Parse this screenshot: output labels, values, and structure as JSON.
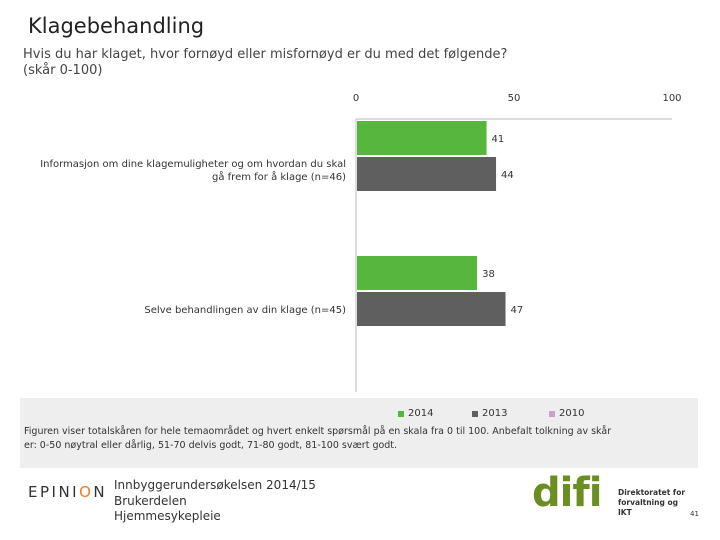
{
  "header": {
    "title": "Klagebehandling",
    "subtitle_line1": "Hvis du har klaget, hvor fornøyd eller misfornøyd er du med det følgende?",
    "subtitle_line2": "(skår 0-100)"
  },
  "chart_data": {
    "type": "bar",
    "orientation": "horizontal",
    "xlim": [
      0,
      100
    ],
    "ticks": [
      "0",
      "50",
      "100"
    ],
    "categories": [
      {
        "line1": "Informasjon om dine klagemuligheter og om hvordan du skal",
        "line2": "gå frem for å klage (n=46)"
      },
      {
        "line1": "Selve behandlingen av din klage (n=45)",
        "line2": ""
      }
    ],
    "series": [
      {
        "name": "2014",
        "color": "#56b63d",
        "values": [
          41,
          38
        ]
      },
      {
        "name": "2013",
        "color": "#5f5f5f",
        "values": [
          44,
          47
        ]
      },
      {
        "name": "2010",
        "color": "#c8a2c8",
        "values": [
          null,
          null
        ]
      }
    ],
    "grid": false,
    "legend": "bottom"
  },
  "note": {
    "line1": "Figuren viser totalskåren for hele temaområdet og hvert enkelt spørsmål på en skala fra 0 til 100. Anbefalt tolkning av skår",
    "line2": "er: 0-50 nøytral eller dårlig, 51-70 delvis godt, 71-80 godt, 81-100 svært godt."
  },
  "footer": {
    "epinion_pre": "EPINI",
    "epinion_o": "O",
    "epinion_post": "N",
    "line1": "Innbyggerundersøkelsen 2014/15",
    "line2": "Brukerdelen",
    "line3": "Hjemmesykepleie",
    "difi_word": "difi",
    "difi_desc1": "Direktoratet for",
    "difi_desc2": "forvaltning og IKT",
    "page_number": "41"
  }
}
